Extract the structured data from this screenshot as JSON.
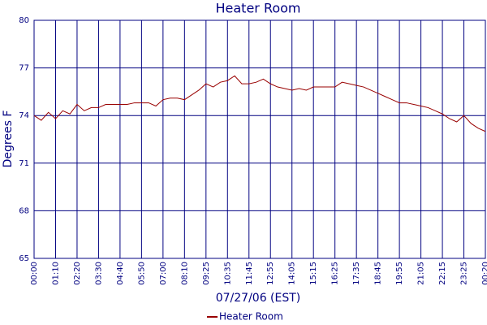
{
  "chart_data": {
    "type": "line",
    "title": "Heater Room",
    "x_label": "07/27/06 (EST)",
    "y_label": "Degrees F",
    "categories": [
      "00:00",
      null,
      null,
      "01:10",
      null,
      null,
      "02:20",
      null,
      null,
      "03:30",
      null,
      null,
      "04:40",
      null,
      null,
      "05:50",
      null,
      null,
      "07:00",
      null,
      null,
      "08:10",
      null,
      null,
      "09:25",
      null,
      null,
      "10:35",
      null,
      null,
      "11:45",
      null,
      null,
      "12:55",
      null,
      null,
      "14:05",
      null,
      null,
      "15:15",
      null,
      null,
      "16:25",
      null,
      null,
      "17:35",
      null,
      null,
      "18:45",
      null,
      null,
      "19:55",
      null,
      null,
      "21:05",
      null,
      null,
      "22:15",
      null,
      null,
      "23:25",
      null,
      null,
      "00:20"
    ],
    "series": [
      {
        "name": "Heater Room",
        "color": "#990000",
        "values": [
          74.0,
          73.7,
          74.2,
          73.8,
          74.3,
          74.1,
          74.7,
          74.3,
          74.5,
          74.5,
          74.7,
          74.7,
          74.7,
          74.7,
          74.8,
          74.8,
          74.8,
          74.6,
          75.0,
          75.1,
          75.1,
          75.0,
          75.3,
          75.6,
          76.0,
          75.8,
          76.1,
          76.2,
          76.5,
          76.0,
          76.0,
          76.1,
          76.3,
          76.0,
          75.8,
          75.7,
          75.6,
          75.7,
          75.6,
          75.8,
          75.8,
          75.8,
          75.8,
          76.1,
          76.0,
          75.9,
          75.8,
          75.6,
          75.4,
          75.2,
          75.0,
          74.8,
          74.8,
          74.7,
          74.6,
          74.5,
          74.3,
          74.1,
          73.8,
          73.6,
          74.0,
          73.5,
          73.2,
          73.0
        ]
      }
    ],
    "ylim": [
      65,
      80
    ],
    "yticks": [
      65,
      68,
      71,
      74,
      77,
      80
    ],
    "grid": true,
    "grid_color": "#000080",
    "legend": "bottom"
  }
}
